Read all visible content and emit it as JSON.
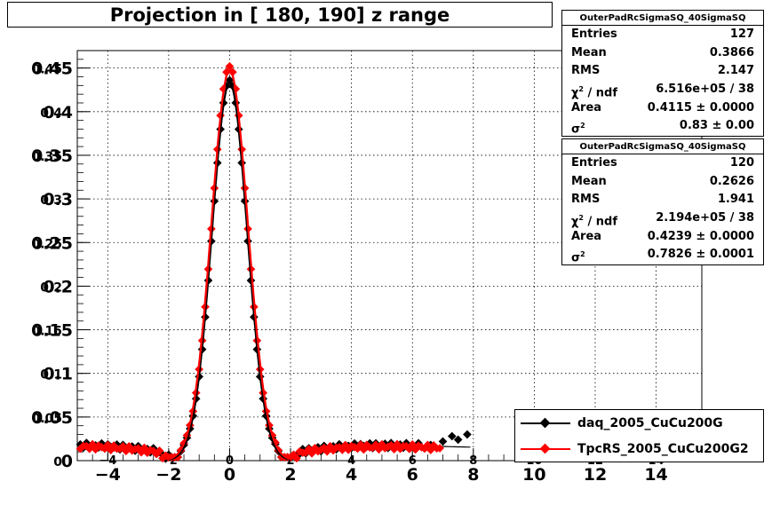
{
  "chart_data": {
    "type": "scatter",
    "title": "Projection in [ 180, 190] z range",
    "xlim": [
      -5,
      15.5
    ],
    "ylim": [
      0,
      0.47
    ],
    "grid": true,
    "legend_position": "bottom-right",
    "x_ticks_major": [
      "−4",
      "−2",
      "0",
      "2",
      "4",
      "6",
      "8",
      "10",
      "12",
      "14"
    ],
    "x_ticks_inner": [
      "−4",
      "−2",
      "0",
      "2",
      "4",
      "6",
      "8",
      "10",
      "12",
      "14"
    ],
    "y_ticks": [
      "0",
      "0.05",
      "0.1",
      "0.15",
      "0.2",
      "0.25",
      "0.3",
      "0.35",
      "0.4",
      "0.45"
    ],
    "y_ticks_inner": [
      "0",
      "0.05",
      "0.1",
      "0.15",
      "0.2",
      "0.25",
      "0.3",
      "0.35",
      "0.4",
      "0.45"
    ],
    "series": [
      {
        "name": "daq_2005_CuCu200G",
        "color": "#000000",
        "marker": "diamond",
        "peak": 0.436,
        "sigma": 0.57,
        "base": 0.024,
        "x_range": [
          -4.9,
          7.9
        ],
        "sparse_points": [
          [
            6.2,
            0.02
          ],
          [
            6.6,
            0.018
          ],
          [
            7.0,
            0.022
          ],
          [
            7.3,
            0.028
          ],
          [
            7.5,
            0.024
          ],
          [
            7.8,
            0.03
          ]
        ]
      },
      {
        "name": "TpcRS_2005_CuCu200G2",
        "color": "#ff0000",
        "marker": "diamond",
        "peak": 0.452,
        "sigma": 0.58,
        "base": 0.022,
        "x_range": [
          -4.9,
          6.9
        ],
        "sparse_points": []
      }
    ],
    "fit_curves": [
      {
        "color": "#000000",
        "amplitude": 0.433,
        "sigma": 0.58,
        "x_range": [
          -2.0,
          2.0
        ]
      },
      {
        "color": "#ff0000",
        "amplitude": 0.447,
        "sigma": 0.6,
        "x_range": [
          -2.0,
          2.0
        ]
      }
    ]
  },
  "stats_boxes": [
    {
      "header": "OuterPadRcSigmaSQ_40SigmaSQ",
      "rows": [
        {
          "label": "Entries",
          "value": "127"
        },
        {
          "label": "Mean",
          "value": "0.3866"
        },
        {
          "label": "RMS",
          "value": "2.147"
        },
        {
          "label": "χ",
          "sup": "2",
          "label2": " / ndf",
          "value": "6.516e+05 / 38"
        },
        {
          "label": "Area",
          "value": "0.4115 ± 0.0000"
        },
        {
          "label": "σ",
          "sup": "2",
          "label2": "",
          "value": "0.83 ± 0.00"
        }
      ]
    },
    {
      "header": "OuterPadRcSigmaSQ_40SigmaSQ",
      "rows": [
        {
          "label": "Entries",
          "value": "120"
        },
        {
          "label": "Mean",
          "value": "0.2626"
        },
        {
          "label": "RMS",
          "value": "1.941"
        },
        {
          "label": "χ",
          "sup": "2",
          "label2": " / ndf",
          "value": "2.194e+05 / 38"
        },
        {
          "label": "Area",
          "value": "0.4239 ± 0.0000"
        },
        {
          "label": "σ",
          "sup": "2",
          "label2": "",
          "value": "0.7826 ± 0.0001"
        }
      ]
    }
  ]
}
